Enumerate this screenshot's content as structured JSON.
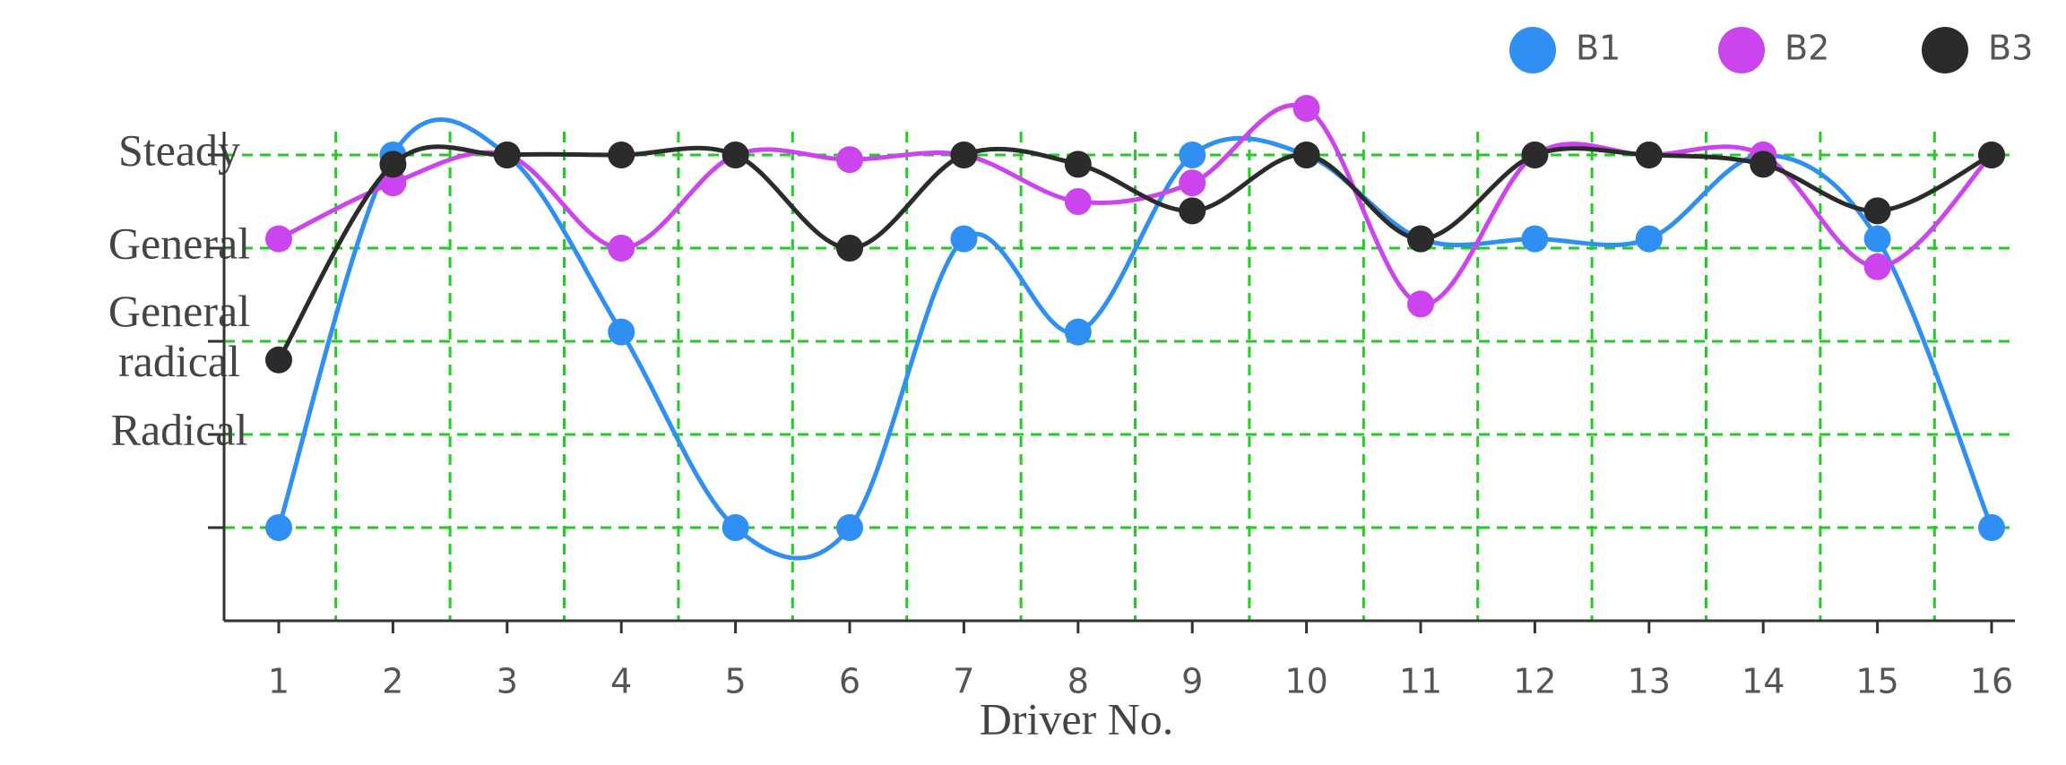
{
  "chart_data": {
    "type": "line",
    "smooth": true,
    "x_label": "Driver No.",
    "categories": [
      "1",
      "2",
      "3",
      "4",
      "5",
      "6",
      "7",
      "8",
      "9",
      "10",
      "11",
      "12",
      "13",
      "14",
      "15",
      "16"
    ],
    "series": [
      {
        "name": "B1",
        "color": "#2f8ff2",
        "values": [
          1,
          5,
          5,
          3.1,
          1,
          1,
          4.1,
          3.1,
          5,
          5,
          4.1,
          4.1,
          4.1,
          5,
          4.1,
          1
        ]
      },
      {
        "name": "B2",
        "color": "#cc44ee",
        "values": [
          4.1,
          4.7,
          5,
          4,
          5,
          4.95,
          5,
          4.5,
          4.7,
          5.5,
          3.4,
          5,
          5,
          5,
          3.8,
          5
        ]
      },
      {
        "name": "B3",
        "color": "#2b2b2b",
        "values": [
          2.8,
          4.9,
          5,
          5,
          5,
          4,
          5,
          4.9,
          4.4,
          5,
          4.1,
          5,
          5,
          4.9,
          4.4,
          5
        ]
      }
    ],
    "ylim": [
      0,
      5.25
    ],
    "yticks": [
      {
        "value": 1,
        "label": null
      },
      {
        "value": 2,
        "label": "Radical"
      },
      {
        "value": 3,
        "label": "General radical"
      },
      {
        "value": 4,
        "label": "General"
      },
      {
        "value": 5,
        "label": "Steady"
      }
    ],
    "grid": true,
    "grid_color": "#22cc22",
    "legend": "top-right"
  }
}
